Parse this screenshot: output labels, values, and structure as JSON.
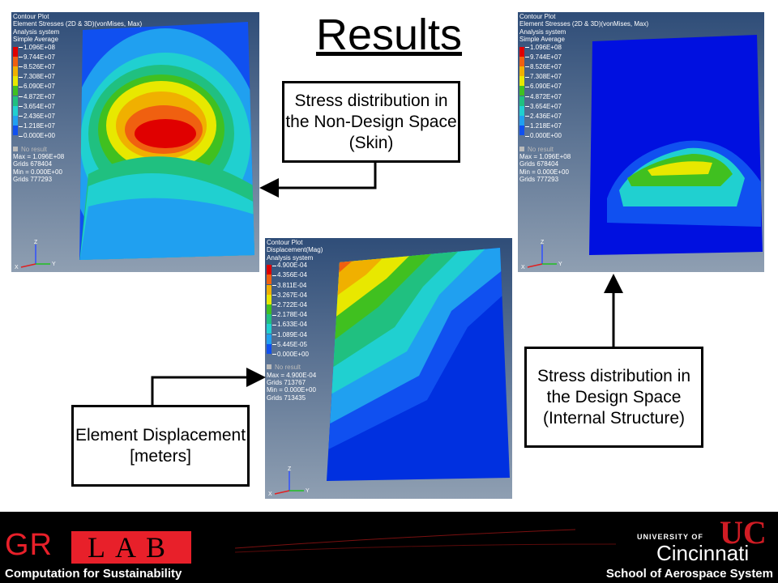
{
  "title": "Results",
  "plots": [
    {
      "header": [
        "Contour Plot",
        "Element Stresses (2D & 3D)(vonMises, Max)",
        "Analysis system",
        "Simple Average"
      ],
      "levels": [
        "1.096E+08",
        "9.744E+07",
        "8.526E+07",
        "7.308E+07",
        "6.090E+07",
        "4.872E+07",
        "3.654E+07",
        "2.436E+07",
        "1.218E+07",
        "0.000E+00"
      ],
      "no_result": "No result",
      "stats": [
        "Max = 1.096E+08",
        "Grids 678404",
        "Min = 0.000E+00",
        "Grids 777293"
      ]
    },
    {
      "header": [
        "Contour Plot",
        "Displacement(Mag)",
        "Analysis system"
      ],
      "levels": [
        "4.900E-04",
        "4.356E-04",
        "3.811E-04",
        "3.267E-04",
        "2.722E-04",
        "2.178E-04",
        "1.633E-04",
        "1.089E-04",
        "5.445E-05",
        "0.000E+00"
      ],
      "no_result": "No result",
      "stats": [
        "Max = 4.900E-04",
        "Grids 713767",
        "Min = 0.000E+00",
        "Grids 713435"
      ]
    },
    {
      "header": [
        "Contour Plot",
        "Element Stresses (2D & 3D)(vonMises, Max)",
        "Analysis system",
        "Simple Average"
      ],
      "levels": [
        "1.096E+08",
        "9.744E+07",
        "8.526E+07",
        "7.308E+07",
        "6.090E+07",
        "4.872E+07",
        "3.654E+07",
        "2.436E+07",
        "1.218E+07",
        "0.000E+00"
      ],
      "no_result": "No result",
      "stats": [
        "Max = 1.096E+08",
        "Grids 678404",
        "Min = 0.000E+00",
        "Grids 777293"
      ]
    }
  ],
  "legend_colors": [
    "#e00000",
    "#f06010",
    "#f0b000",
    "#e8e800",
    "#40c020",
    "#20c080",
    "#20d0d0",
    "#20a0f0",
    "#1050f0",
    "#0000c0"
  ],
  "axis_labels": {
    "x": "X",
    "y": "Y",
    "z": "Z"
  },
  "callouts": {
    "skin": "Stress distribution in the Non-Design Space (Skin)",
    "displacement": "Element Displacement [meters]",
    "internal": "Stress distribution in the Design Space (Internal Structure)"
  },
  "footer": {
    "gr": "GR",
    "lab": "LAB",
    "tagline": "Computation for Sustainability",
    "univ_of": "UNIVERSITY OF",
    "cincinnati": "Cincinnati",
    "uc_mark": "UC",
    "school": "School of Aerospace System"
  }
}
